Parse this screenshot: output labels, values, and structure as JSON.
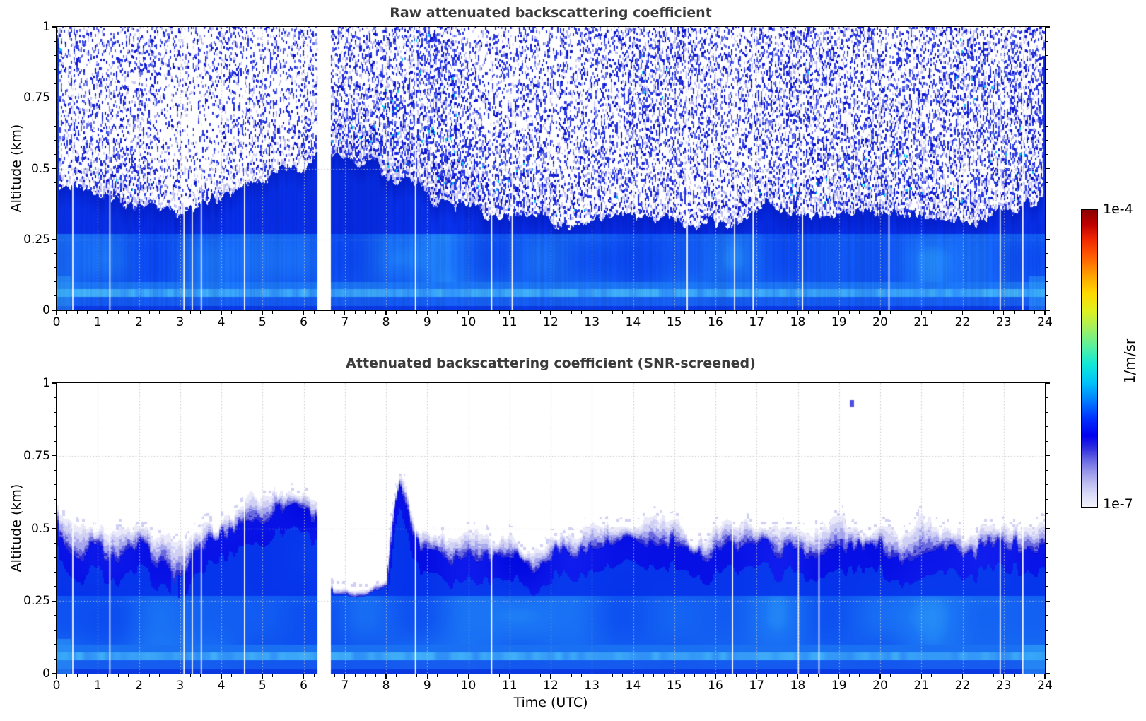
{
  "figure": {
    "background": "#ffffff",
    "title_color": "#3b3b3b"
  },
  "axis": {
    "time_label": "Time (UTC)"
  },
  "colorbar": {
    "label_top": "1e-4",
    "label_bottom": "1e-7",
    "unit_label": "1/m/sr",
    "scale": "log",
    "stops": [
      [
        0.0,
        "#f2f2fc"
      ],
      [
        0.04,
        "#dcdcf8"
      ],
      [
        0.08,
        "#bcbcf2"
      ],
      [
        0.12,
        "#9494ea"
      ],
      [
        0.16,
        "#6464e4"
      ],
      [
        0.2,
        "#2a2ae0"
      ],
      [
        0.24,
        "#0000ee"
      ],
      [
        0.3,
        "#0033ff"
      ],
      [
        0.36,
        "#0080ff"
      ],
      [
        0.42,
        "#00c4f8"
      ],
      [
        0.48,
        "#10e8d8"
      ],
      [
        0.54,
        "#58f0a0"
      ],
      [
        0.6,
        "#a0f060"
      ],
      [
        0.66,
        "#e0f020"
      ],
      [
        0.72,
        "#ffd800"
      ],
      [
        0.78,
        "#ffa000"
      ],
      [
        0.84,
        "#ff6000"
      ],
      [
        0.9,
        "#f02800"
      ],
      [
        0.95,
        "#c00000"
      ],
      [
        1.0,
        "#8b0000"
      ]
    ]
  },
  "palette": {
    "deep_blue": "#0322d6",
    "deep_blue2": "#0a36ec",
    "boundary_dark": "#0114b8",
    "blue": "#0a46ee",
    "bright_blue": "#1e7cf6",
    "cyan_patch": "#2fa0f8",
    "mid_blue": "#1a70f2",
    "band_light": "#2e8ef6",
    "band_cyan": "#41b0f8",
    "low_blue": "#1256ee",
    "low_blue2": "#1a66f0",
    "surface_blue": "#0a38e2",
    "noise_pale": "#dadaf7",
    "noise_pale2": "#aeaef0",
    "noise_medium": "#2636e2",
    "noise_dark": "#0c12cc",
    "noise_cyan": "#00c2fa",
    "noise_light": "#6670ea",
    "cap_blue": "#0008e0",
    "cap_blue2": "#1a2af6",
    "scr_deep": "#0430ea",
    "scr_deep2": "#0c44f0",
    "scr_blue": "#0b4af0",
    "scr_bright": "#1e7ff6",
    "lav1": "#e9e9f9",
    "lav2": "#d0d0f4",
    "lav3": "#a6a6ec",
    "lav4": "#6a6ade",
    "lav5": "#2e2ed2",
    "bright_cyan": "#34acf8",
    "speck_blue": "#5050e0"
  },
  "chart_data": [
    {
      "id": "raw",
      "type": "heatmap",
      "title": "Raw attenuated backscattering coefficient",
      "ylabel": "Altitude (km)",
      "xlabel": "",
      "x_range": [
        0,
        24
      ],
      "y_range": [
        0,
        1
      ],
      "x_ticks": [
        0,
        1,
        2,
        3,
        4,
        5,
        6,
        7,
        8,
        9,
        10,
        11,
        12,
        13,
        14,
        15,
        16,
        17,
        18,
        19,
        20,
        21,
        22,
        23,
        24
      ],
      "x_tick_labels": [
        "0",
        "1",
        "2",
        "3",
        "4",
        "5",
        "6",
        "7",
        "8",
        "9",
        "10",
        "11",
        "12",
        "13",
        "14",
        "15",
        "16",
        "17",
        "18",
        "19",
        "20",
        "21",
        "22",
        "23",
        "24"
      ],
      "y_ticks": [
        1,
        0.75,
        0.5,
        0.25,
        0
      ],
      "y_tick_labels": [
        "1",
        "0.75",
        "0.5",
        "0.25",
        "0"
      ],
      "grid": "dotted",
      "colormap": "jet-like, pale lavender at 1e-7 rising through blue, cyan, green, yellow, red to dark red at 1e-4 (1/m/sr)",
      "data_gap_hours": [
        6.32,
        6.65
      ],
      "instrument_white_lines_hours": [
        0.38,
        1.28,
        3.08,
        3.28,
        3.5,
        4.55,
        8.7,
        10.55,
        11.05,
        15.3,
        16.45,
        16.9,
        18.1,
        20.2,
        22.9,
        23.45
      ],
      "mixed_layer_top_km": {
        "hours": [
          0,
          0.5,
          1,
          1.5,
          2,
          2.5,
          3,
          3.5,
          4,
          4.5,
          5,
          5.5,
          6,
          6.3,
          6.7,
          7,
          7.5,
          8,
          8.5,
          9,
          9.5,
          10,
          10.5,
          11,
          11.5,
          12,
          12.5,
          13,
          13.5,
          14,
          14.5,
          15,
          15.5,
          16,
          16.5,
          17,
          17.5,
          18,
          18.5,
          19,
          19.5,
          20,
          20.5,
          21,
          21.5,
          22,
          22.5,
          23,
          23.5,
          24
        ],
        "km": [
          0.44,
          0.41,
          0.4,
          0.38,
          0.36,
          0.34,
          0.33,
          0.36,
          0.39,
          0.43,
          0.47,
          0.5,
          0.52,
          0.53,
          0.56,
          0.55,
          0.52,
          0.48,
          0.45,
          0.42,
          0.38,
          0.36,
          0.34,
          0.33,
          0.34,
          0.33,
          0.32,
          0.33,
          0.34,
          0.35,
          0.33,
          0.32,
          0.31,
          0.3,
          0.33,
          0.36,
          0.37,
          0.35,
          0.34,
          0.34,
          0.35,
          0.34,
          0.33,
          0.34,
          0.32,
          0.32,
          0.33,
          0.36,
          0.4,
          0.38
        ]
      },
      "notes": "speckle noise above the mixed layer (raw, un-screened SNR); noise denser for 6.7-9.6 UTC; bright near-surface band near 0.05 km"
    },
    {
      "id": "screened",
      "type": "heatmap",
      "title": "Attenuated backscattering coefficient (SNR-screened)",
      "ylabel": "Altitude (km)",
      "xlabel": "Time (UTC)",
      "x_range": [
        0,
        24
      ],
      "y_range": [
        0,
        1
      ],
      "x_ticks": [
        0,
        1,
        2,
        3,
        4,
        5,
        6,
        7,
        8,
        9,
        10,
        11,
        12,
        13,
        14,
        15,
        16,
        17,
        18,
        19,
        20,
        21,
        22,
        23,
        24
      ],
      "x_tick_labels": [
        "0",
        "1",
        "2",
        "3",
        "4",
        "5",
        "6",
        "7",
        "8",
        "9",
        "10",
        "11",
        "12",
        "13",
        "14",
        "15",
        "16",
        "17",
        "18",
        "19",
        "20",
        "21",
        "22",
        "23",
        "24"
      ],
      "y_ticks": [
        1,
        0.75,
        0.5,
        0.25,
        0
      ],
      "y_tick_labels": [
        "1",
        "0.75",
        "0.5",
        "0.25",
        "0"
      ],
      "grid": "dotted",
      "colormap": "same scale as raw panel; values below SNR threshold are white",
      "data_gap_hours": [
        6.32,
        6.65
      ],
      "instrument_white_lines_hours": [
        0.38,
        1.28,
        3.08,
        3.28,
        3.5,
        4.55,
        8.7,
        10.55,
        16.4,
        18.0,
        18.5,
        22.9,
        23.45
      ],
      "screened_top_km": {
        "hours": [
          0,
          0.5,
          1,
          1.5,
          2,
          2.5,
          3,
          3.5,
          4,
          4.5,
          5,
          5.3,
          5.7,
          6,
          6.3,
          6.7,
          7,
          7.5,
          8,
          8.15,
          8.3,
          8.5,
          8.7,
          9,
          9.5,
          10,
          10.5,
          11,
          11.5,
          12,
          12.5,
          13,
          13.5,
          14,
          14.5,
          15,
          15.5,
          16,
          16.5,
          17,
          17.5,
          18,
          18.5,
          19,
          19.5,
          20,
          20.5,
          21,
          21.5,
          22,
          22.5,
          23,
          23.5,
          24
        ],
        "km": [
          0.55,
          0.52,
          0.5,
          0.48,
          0.5,
          0.48,
          0.46,
          0.5,
          0.54,
          0.57,
          0.62,
          0.65,
          0.63,
          0.62,
          0.6,
          0.3,
          0.29,
          0.29,
          0.32,
          0.55,
          0.68,
          0.62,
          0.5,
          0.46,
          0.48,
          0.5,
          0.45,
          0.46,
          0.44,
          0.46,
          0.48,
          0.5,
          0.48,
          0.5,
          0.52,
          0.5,
          0.48,
          0.5,
          0.5,
          0.52,
          0.5,
          0.5,
          0.48,
          0.52,
          0.5,
          0.5,
          0.48,
          0.52,
          0.5,
          0.48,
          0.5,
          0.52,
          0.5,
          0.52
        ]
      },
      "strong_signal_top_km": {
        "hours": [
          0,
          0.5,
          1,
          1.5,
          2,
          2.5,
          3,
          3.5,
          4,
          4.5,
          5,
          5.3,
          5.7,
          6,
          6.3,
          6.7,
          7,
          7.5,
          8,
          8.15,
          8.3,
          8.5,
          8.7,
          9,
          9.5,
          10,
          10.5,
          11,
          11.5,
          12,
          12.5,
          13,
          13.5,
          14,
          14.5,
          15,
          15.5,
          16,
          16.5,
          17,
          17.5,
          18,
          18.5,
          19,
          19.5,
          20,
          20.5,
          21,
          21.5,
          22,
          22.5,
          23,
          23.5,
          24
        ],
        "km": [
          0.46,
          0.4,
          0.42,
          0.38,
          0.42,
          0.37,
          0.35,
          0.42,
          0.46,
          0.5,
          0.55,
          0.6,
          0.58,
          0.57,
          0.55,
          0.28,
          0.28,
          0.28,
          0.3,
          0.5,
          0.64,
          0.55,
          0.44,
          0.4,
          0.42,
          0.44,
          0.38,
          0.4,
          0.38,
          0.4,
          0.42,
          0.44,
          0.42,
          0.44,
          0.46,
          0.43,
          0.41,
          0.43,
          0.44,
          0.46,
          0.44,
          0.43,
          0.41,
          0.45,
          0.43,
          0.43,
          0.41,
          0.45,
          0.43,
          0.41,
          0.43,
          0.45,
          0.43,
          0.45
        ]
      },
      "isolated_echo": {
        "hour": 19.3,
        "altitude_km": 0.93
      },
      "notes": "white above SNR screen; shallow residual layer 0.28 km between 6.7-8.0 UTC, plume to ~0.7 km at 8.2-8.5 UTC"
    }
  ]
}
